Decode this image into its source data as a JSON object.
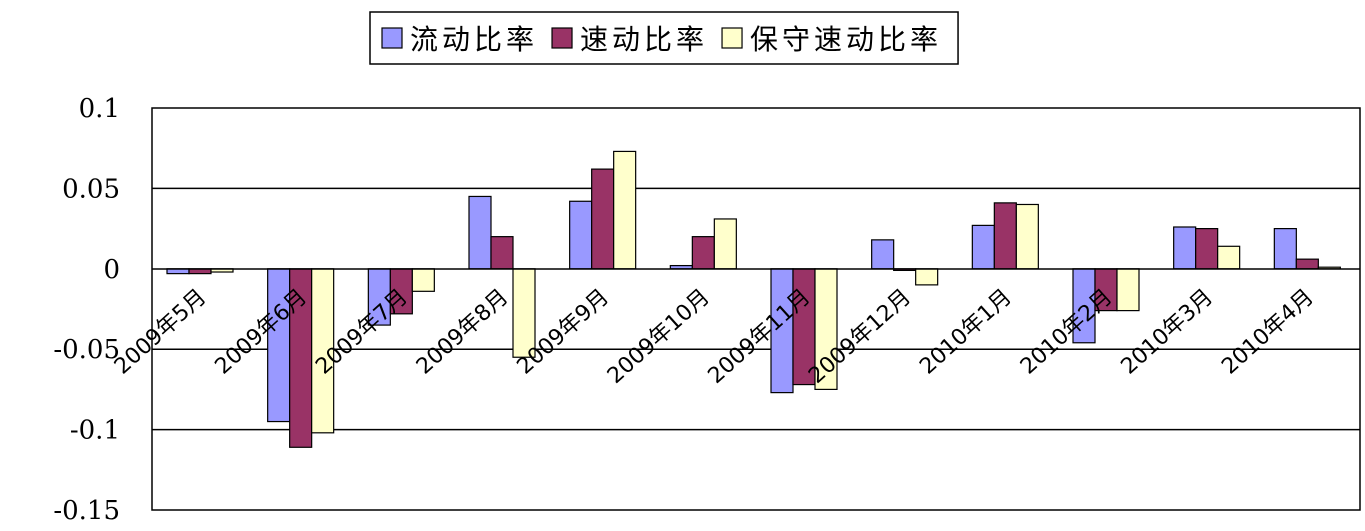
{
  "chart_data": {
    "type": "bar",
    "categories": [
      "2009年5月",
      "2009年6月",
      "2009年7月",
      "2009年8月",
      "2009年9月",
      "2009年10月",
      "2009年11月",
      "2009年12月",
      "2010年1月",
      "2010年2月",
      "2010年3月",
      "2010年4月"
    ],
    "series": [
      {
        "name": "流动比率",
        "color": "#9999ff",
        "values": [
          -0.003,
          -0.095,
          -0.035,
          0.045,
          0.042,
          0.002,
          -0.077,
          0.018,
          0.027,
          -0.046,
          0.026,
          0.025
        ]
      },
      {
        "name": "速动比率",
        "color": "#993366",
        "values": [
          -0.003,
          -0.111,
          -0.028,
          0.02,
          0.062,
          0.02,
          -0.072,
          -0.001,
          0.041,
          -0.026,
          0.025,
          0.006
        ]
      },
      {
        "name": "保守速动比率",
        "color": "#ffffcc",
        "values": [
          -0.002,
          -0.102,
          -0.014,
          -0.055,
          0.073,
          0.031,
          -0.075,
          -0.01,
          0.04,
          -0.026,
          0.014,
          0.001
        ]
      }
    ],
    "y_ticks": [
      "0.1",
      "0.05",
      "0",
      "-0.05",
      "-0.1",
      "-0.15"
    ],
    "ylim": [
      -0.15,
      0.1
    ],
    "legend_position": "top",
    "grid": true
  }
}
